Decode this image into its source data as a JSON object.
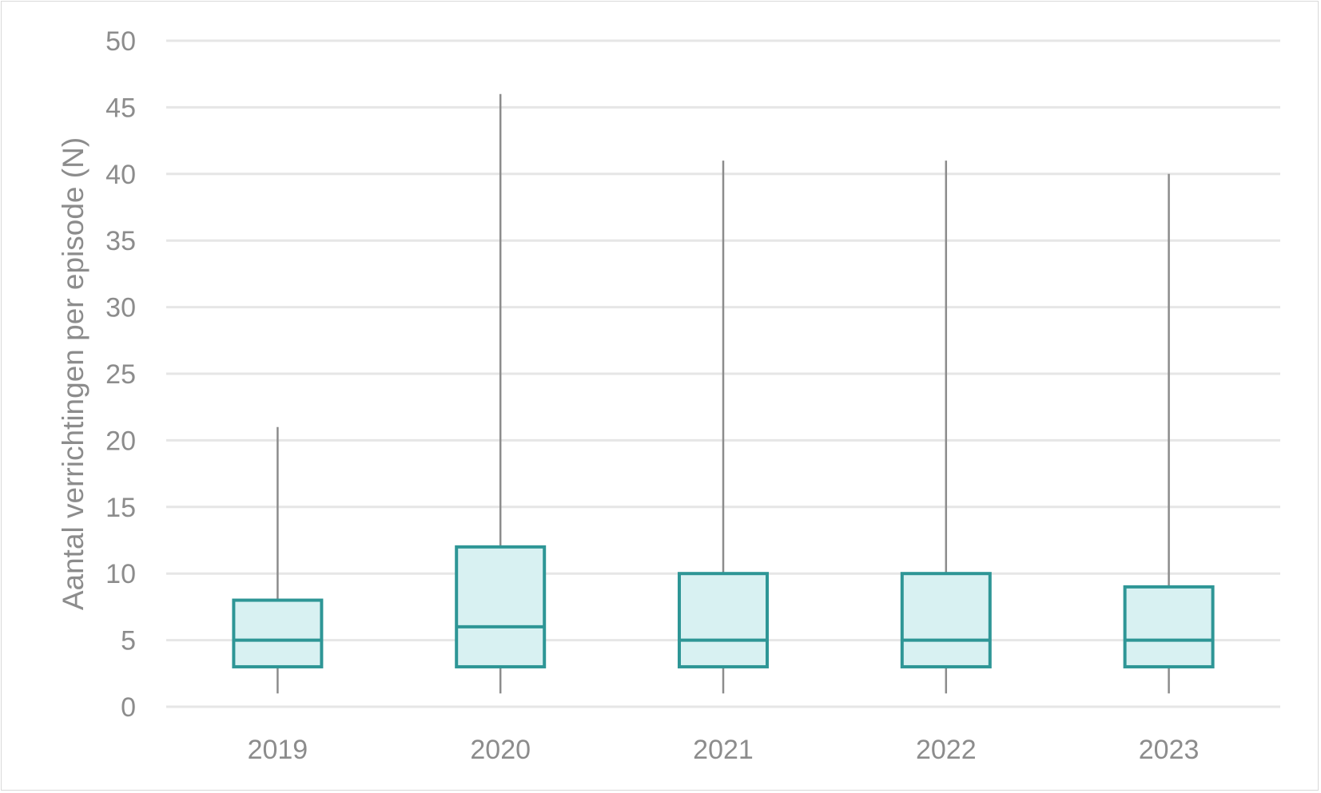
{
  "chart_data": {
    "type": "box",
    "title": "",
    "xlabel": "",
    "ylabel": "Aantal verrichtingen per episode (N)",
    "ylim": [
      0,
      50
    ],
    "yticks": [
      0,
      5,
      10,
      15,
      20,
      25,
      30,
      35,
      40,
      45,
      50
    ],
    "grid": true,
    "categories": [
      "2019",
      "2020",
      "2021",
      "2022",
      "2023"
    ],
    "boxes": [
      {
        "category": "2019",
        "min": 1,
        "q1": 3,
        "median": 5,
        "q3": 8,
        "max": 21
      },
      {
        "category": "2020",
        "min": 1,
        "q1": 3,
        "median": 6,
        "q3": 12,
        "max": 46
      },
      {
        "category": "2021",
        "min": 1,
        "q1": 3,
        "median": 5,
        "q3": 10,
        "max": 41
      },
      {
        "category": "2022",
        "min": 1,
        "q1": 3,
        "median": 5,
        "q3": 10,
        "max": 41
      },
      {
        "category": "2023",
        "min": 1,
        "q1": 3,
        "median": 5,
        "q3": 9,
        "max": 40
      }
    ],
    "colors": {
      "box_stroke": "#2e9696",
      "box_fill": "#d8f1f2",
      "whisker": "#8c8c8c",
      "grid": "#e6e6e6",
      "text": "#8c8c8c"
    }
  }
}
